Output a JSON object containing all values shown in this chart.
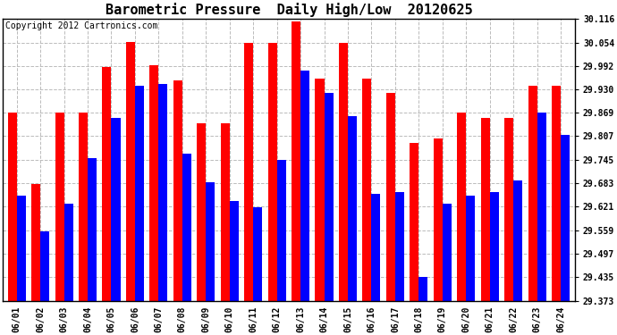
{
  "title": "Barometric Pressure  Daily High/Low  20120625",
  "copyright": "Copyright 2012 Cartronics.com",
  "dates": [
    "06/01",
    "06/02",
    "06/03",
    "06/04",
    "06/05",
    "06/06",
    "06/07",
    "06/08",
    "06/09",
    "06/10",
    "06/11",
    "06/12",
    "06/13",
    "06/14",
    "06/15",
    "06/16",
    "06/17",
    "06/18",
    "06/19",
    "06/20",
    "06/21",
    "06/22",
    "06/23",
    "06/24"
  ],
  "highs": [
    29.87,
    29.68,
    29.87,
    29.87,
    29.99,
    30.055,
    29.995,
    29.955,
    29.84,
    29.84,
    30.054,
    30.054,
    30.11,
    29.96,
    30.054,
    29.96,
    29.92,
    29.79,
    29.8,
    29.87,
    29.855,
    29.855,
    29.94,
    29.94
  ],
  "lows": [
    29.65,
    29.555,
    29.63,
    29.75,
    29.855,
    29.94,
    29.945,
    29.76,
    29.685,
    29.635,
    29.62,
    29.745,
    29.98,
    29.92,
    29.86,
    29.655,
    29.66,
    29.435,
    29.63,
    29.65,
    29.66,
    29.69,
    29.87,
    29.81
  ],
  "high_color": "#FF0000",
  "low_color": "#0000FF",
  "bg_color": "#FFFFFF",
  "grid_color": "#BBBBBB",
  "ymin": 29.373,
  "ymax": 30.116,
  "yticks": [
    29.373,
    29.435,
    29.497,
    29.559,
    29.621,
    29.683,
    29.745,
    29.807,
    29.869,
    29.93,
    29.992,
    30.054,
    30.116
  ],
  "title_fontsize": 11,
  "copyright_fontsize": 7
}
